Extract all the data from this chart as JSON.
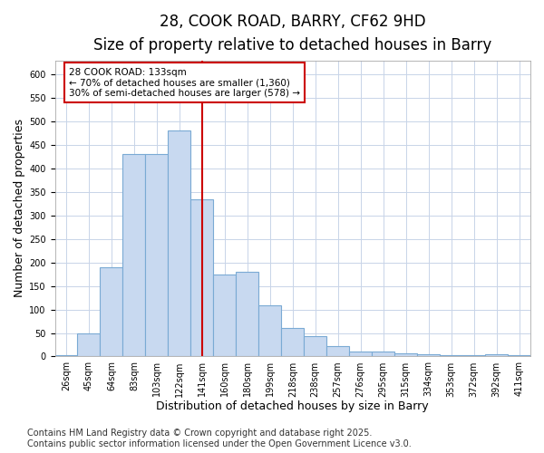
{
  "title_line1": "28, COOK ROAD, BARRY, CF62 9HD",
  "title_line2": "Size of property relative to detached houses in Barry",
  "xlabel": "Distribution of detached houses by size in Barry",
  "ylabel": "Number of detached properties",
  "categories": [
    "26sqm",
    "45sqm",
    "64sqm",
    "83sqm",
    "103sqm",
    "122sqm",
    "141sqm",
    "160sqm",
    "180sqm",
    "199sqm",
    "218sqm",
    "238sqm",
    "257sqm",
    "276sqm",
    "295sqm",
    "315sqm",
    "334sqm",
    "353sqm",
    "372sqm",
    "392sqm",
    "411sqm"
  ],
  "values": [
    3,
    50,
    190,
    430,
    430,
    480,
    335,
    175,
    180,
    108,
    60,
    43,
    22,
    10,
    10,
    7,
    4,
    3,
    2,
    4,
    2
  ],
  "bar_color": "#c8d9f0",
  "bar_edge_color": "#7aaad4",
  "vline_color": "#cc0000",
  "annotation_line1": "28 COOK ROAD: 133sqm",
  "annotation_line2": "← 70% of detached houses are smaller (1,360)",
  "annotation_line3": "30% of semi-detached houses are larger (578) →",
  "annotation_box_color": "#ffffff",
  "annotation_box_edge": "#cc0000",
  "ylim": [
    0,
    630
  ],
  "yticks": [
    0,
    50,
    100,
    150,
    200,
    250,
    300,
    350,
    400,
    450,
    500,
    550,
    600
  ],
  "background_color": "#ffffff",
  "plot_bg_color": "#ffffff",
  "grid_color": "#c8d4e8",
  "footer_text": "Contains HM Land Registry data © Crown copyright and database right 2025.\nContains public sector information licensed under the Open Government Licence v3.0.",
  "title_fontsize": 12,
  "subtitle_fontsize": 10,
  "tick_fontsize": 7,
  "label_fontsize": 9,
  "footer_fontsize": 7
}
